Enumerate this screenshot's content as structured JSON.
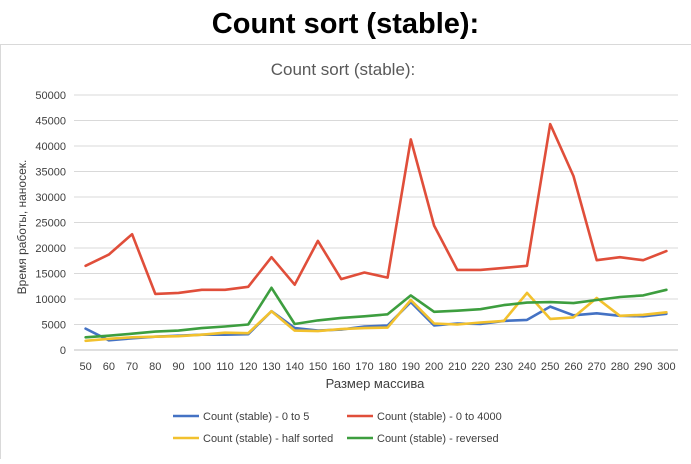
{
  "page_title": "Count sort (stable):",
  "chart_data": {
    "type": "line",
    "title": "Count sort (stable):",
    "xlabel": "Размер массива",
    "ylabel": "Время работы, наносек.",
    "ylim": [
      0,
      50000
    ],
    "yticks": [
      0,
      5000,
      10000,
      15000,
      20000,
      25000,
      30000,
      35000,
      40000,
      45000,
      50000
    ],
    "grid": true,
    "legend_position": "bottom",
    "x": [
      50,
      60,
      70,
      80,
      90,
      100,
      110,
      120,
      130,
      140,
      150,
      160,
      170,
      180,
      190,
      200,
      210,
      220,
      230,
      240,
      250,
      260,
      270,
      280,
      290,
      300
    ],
    "series": [
      {
        "name": "Count (stable) - 0 to 5",
        "color": "#4472c4",
        "values": [
          4200,
          1900,
          2300,
          2600,
          2800,
          3000,
          3000,
          3100,
          7600,
          4300,
          3800,
          4000,
          4600,
          4800,
          9400,
          4800,
          5200,
          5100,
          5700,
          5900,
          8500,
          6800,
          7200,
          6700,
          6600,
          7100
        ]
      },
      {
        "name": "Count (stable) - 0 to 4000",
        "color": "#e04e3a",
        "values": [
          16500,
          18700,
          22700,
          11000,
          11200,
          11800,
          11800,
          12400,
          18200,
          12800,
          21400,
          13900,
          15200,
          14200,
          41300,
          24400,
          15700,
          15700,
          16100,
          16500,
          44300,
          34100,
          17600,
          18200,
          17600,
          19400
        ]
      },
      {
        "name": "Count (stable) - half sorted",
        "color": "#f2c12e",
        "values": [
          1800,
          2200,
          2500,
          2600,
          2700,
          3000,
          3400,
          3300,
          7600,
          3800,
          3700,
          4100,
          4300,
          4400,
          9800,
          5200,
          5000,
          5400,
          5700,
          11200,
          6100,
          6400,
          10200,
          6700,
          6900,
          7400
        ]
      },
      {
        "name": "Count (stable) - reversed",
        "color": "#3d9e3f",
        "values": [
          2500,
          2800,
          3200,
          3600,
          3800,
          4300,
          4600,
          5000,
          12200,
          5100,
          5800,
          6300,
          6600,
          7000,
          10700,
          7500,
          7700,
          8000,
          8800,
          9300,
          9400,
          9200,
          9800,
          10400,
          10700,
          11800
        ]
      }
    ]
  }
}
